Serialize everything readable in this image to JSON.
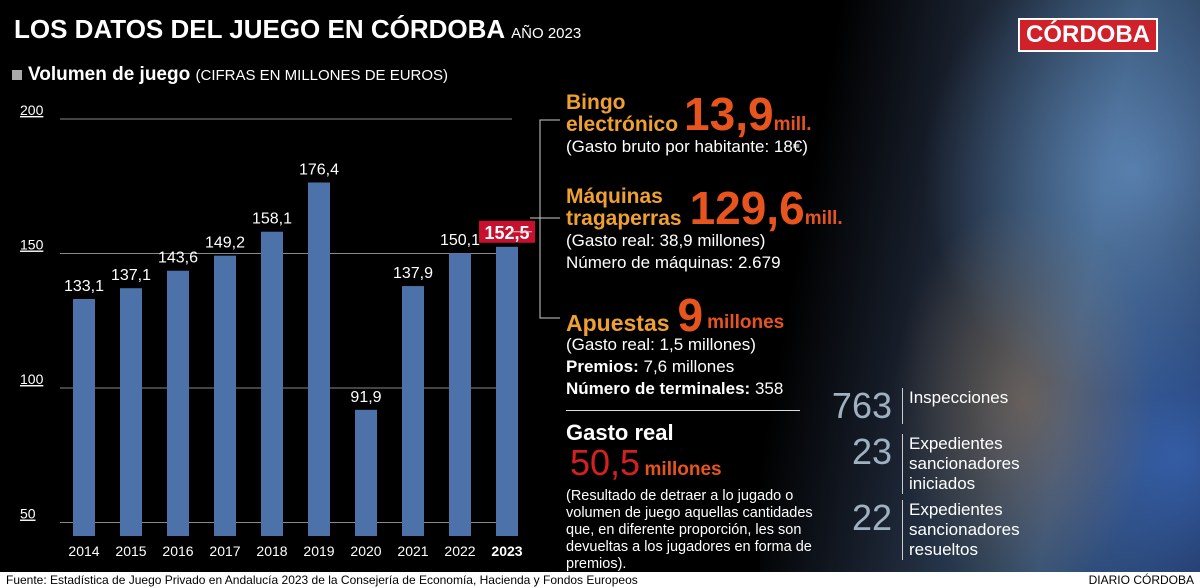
{
  "header": {
    "title": "LOS DATOS DEL JUEGO EN CÓRDOBA",
    "year": "AÑO 2023",
    "logo": "CÓRDOBA"
  },
  "chart_data": {
    "type": "bar",
    "title": "Volumen de juego",
    "subtitle": "(CIFRAS EN MILLONES DE EUROS)",
    "categories": [
      "2014",
      "2015",
      "2016",
      "2017",
      "2018",
      "2019",
      "2020",
      "2021",
      "2022",
      "2023"
    ],
    "values": [
      133.1,
      137.1,
      143.6,
      149.2,
      158.1,
      176.4,
      91.9,
      137.9,
      150.1,
      152.5
    ],
    "labels": [
      "133,1",
      "137,1",
      "143,6",
      "149,2",
      "158,1",
      "176,4",
      "91,9",
      "137,9",
      "150,1",
      "152,5"
    ],
    "yticks": [
      "50",
      "100",
      "150",
      "200"
    ],
    "ylim": [
      45,
      200
    ],
    "grid": true,
    "bar_color": "#4d72aa",
    "highlight_color": "#c8102e"
  },
  "bingo": {
    "label1": "Bingo",
    "label2": "electrónico",
    "value": "13,9",
    "unit": "mill.",
    "note": "(Gasto bruto por habitante: 18€)"
  },
  "maquinas": {
    "label1": "Máquinas",
    "label2": "tragaperras",
    "value": "129,6",
    "unit": "mill.",
    "note1": "(Gasto real: 38,9 millones)",
    "note2": "Número de máquinas: 2.679"
  },
  "apuestas": {
    "label": "Apuestas",
    "value": "9",
    "unit": "millones",
    "note1": "(Gasto real: 1,5 millones)",
    "premios_label": "Premios:",
    "premios_value": "7,6 millones",
    "terminales_label": "Número de terminales:",
    "terminales_value": "358"
  },
  "gasto": {
    "label": "Gasto real",
    "value": "50,5",
    "unit": "millones",
    "note": "(Resultado de detraer a lo jugado o volumen de juego aquellas cantidades que, en diferente proporción, les son devueltas a los jugadores en forma de premios)."
  },
  "stats": [
    {
      "n": "763",
      "t": "Inspecciones"
    },
    {
      "n": "23",
      "t": "Expedientes sancionadores iniciados"
    },
    {
      "n": "22",
      "t": "Expedientes sancionadores resueltos"
    }
  ],
  "footer": {
    "source": "Fuente: Estadística de Juego Privado en Andalucía 2023 de la Consejería de Economía, Hacienda y Fondos Europeos",
    "credit": "DIARIO CÓRDOBA"
  }
}
